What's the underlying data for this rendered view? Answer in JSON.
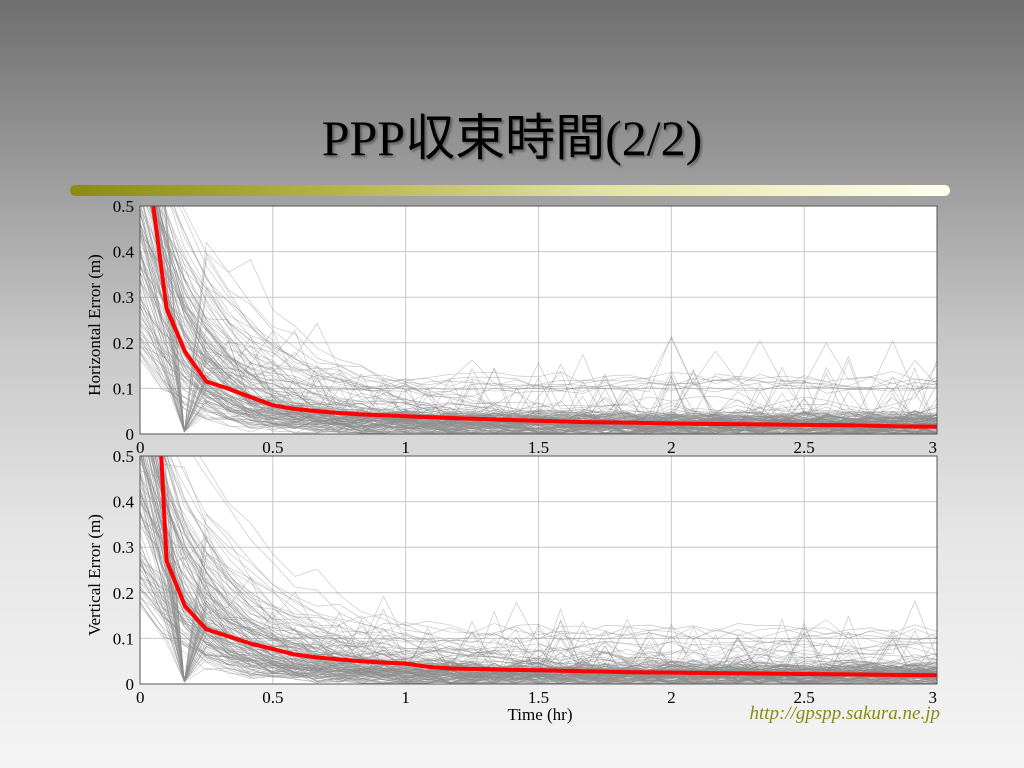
{
  "slide": {
    "title": "PPP収束時間(2/2)",
    "url": "http://gpspp.sakura.ne.jp",
    "accent_color": "#ff0000",
    "trace_color": "#8c8c8c",
    "rule_colors": [
      "#8a8a14",
      "#ffffee"
    ]
  },
  "chart_data": [
    {
      "type": "line",
      "title": "",
      "xlabel": "",
      "ylabel": "Horizontal Error (m)",
      "xlim": [
        0,
        3
      ],
      "ylim": [
        0,
        0.5
      ],
      "x_ticks": [
        "0",
        "0.5",
        "1",
        "1.5",
        "2",
        "2.5",
        "3"
      ],
      "y_ticks": [
        "0",
        "0.1",
        "0.2",
        "0.3",
        "0.4",
        "0.5"
      ],
      "grid": true,
      "background_traces": "many individual station error traces (gray), approx. 300",
      "series": [
        {
          "color": "#ff0000",
          "x": [
            0.05,
            0.1,
            0.17,
            0.25,
            0.33,
            0.42,
            0.5,
            0.58,
            0.67,
            0.75,
            0.83,
            0.92,
            1.0,
            1.17,
            1.33,
            1.5,
            1.67,
            1.83,
            2.0,
            2.17,
            2.33,
            2.5,
            2.67,
            2.83,
            3.0
          ],
          "y": [
            0.5,
            0.275,
            0.18,
            0.115,
            0.1,
            0.08,
            0.063,
            0.055,
            0.05,
            0.046,
            0.043,
            0.041,
            0.039,
            0.035,
            0.032,
            0.029,
            0.026,
            0.025,
            0.023,
            0.022,
            0.021,
            0.02,
            0.019,
            0.017,
            0.016
          ]
        }
      ]
    },
    {
      "type": "line",
      "title": "",
      "xlabel": "Time (hr)",
      "ylabel": "Vertical Error (m)",
      "xlim": [
        0,
        3
      ],
      "ylim": [
        0,
        0.5
      ],
      "x_ticks": [
        "0",
        "0.5",
        "1",
        "1.5",
        "2",
        "2.5",
        "3"
      ],
      "y_ticks": [
        "0",
        "0.1",
        "0.2",
        "0.3",
        "0.4",
        "0.5"
      ],
      "grid": true,
      "background_traces": "many individual station error traces (gray), approx. 300",
      "series": [
        {
          "color": "#ff0000",
          "x": [
            0.08,
            0.1,
            0.17,
            0.25,
            0.33,
            0.42,
            0.5,
            0.58,
            0.67,
            0.75,
            0.83,
            0.92,
            1.0,
            1.08,
            1.17,
            1.33,
            1.5,
            1.67,
            1.83,
            2.0,
            2.17,
            2.33,
            2.5,
            2.67,
            2.83,
            3.0
          ],
          "y": [
            0.5,
            0.27,
            0.17,
            0.12,
            0.105,
            0.088,
            0.077,
            0.065,
            0.058,
            0.054,
            0.05,
            0.047,
            0.045,
            0.038,
            0.034,
            0.032,
            0.03,
            0.028,
            0.026,
            0.025,
            0.024,
            0.023,
            0.022,
            0.021,
            0.02,
            0.019
          ]
        }
      ]
    }
  ]
}
